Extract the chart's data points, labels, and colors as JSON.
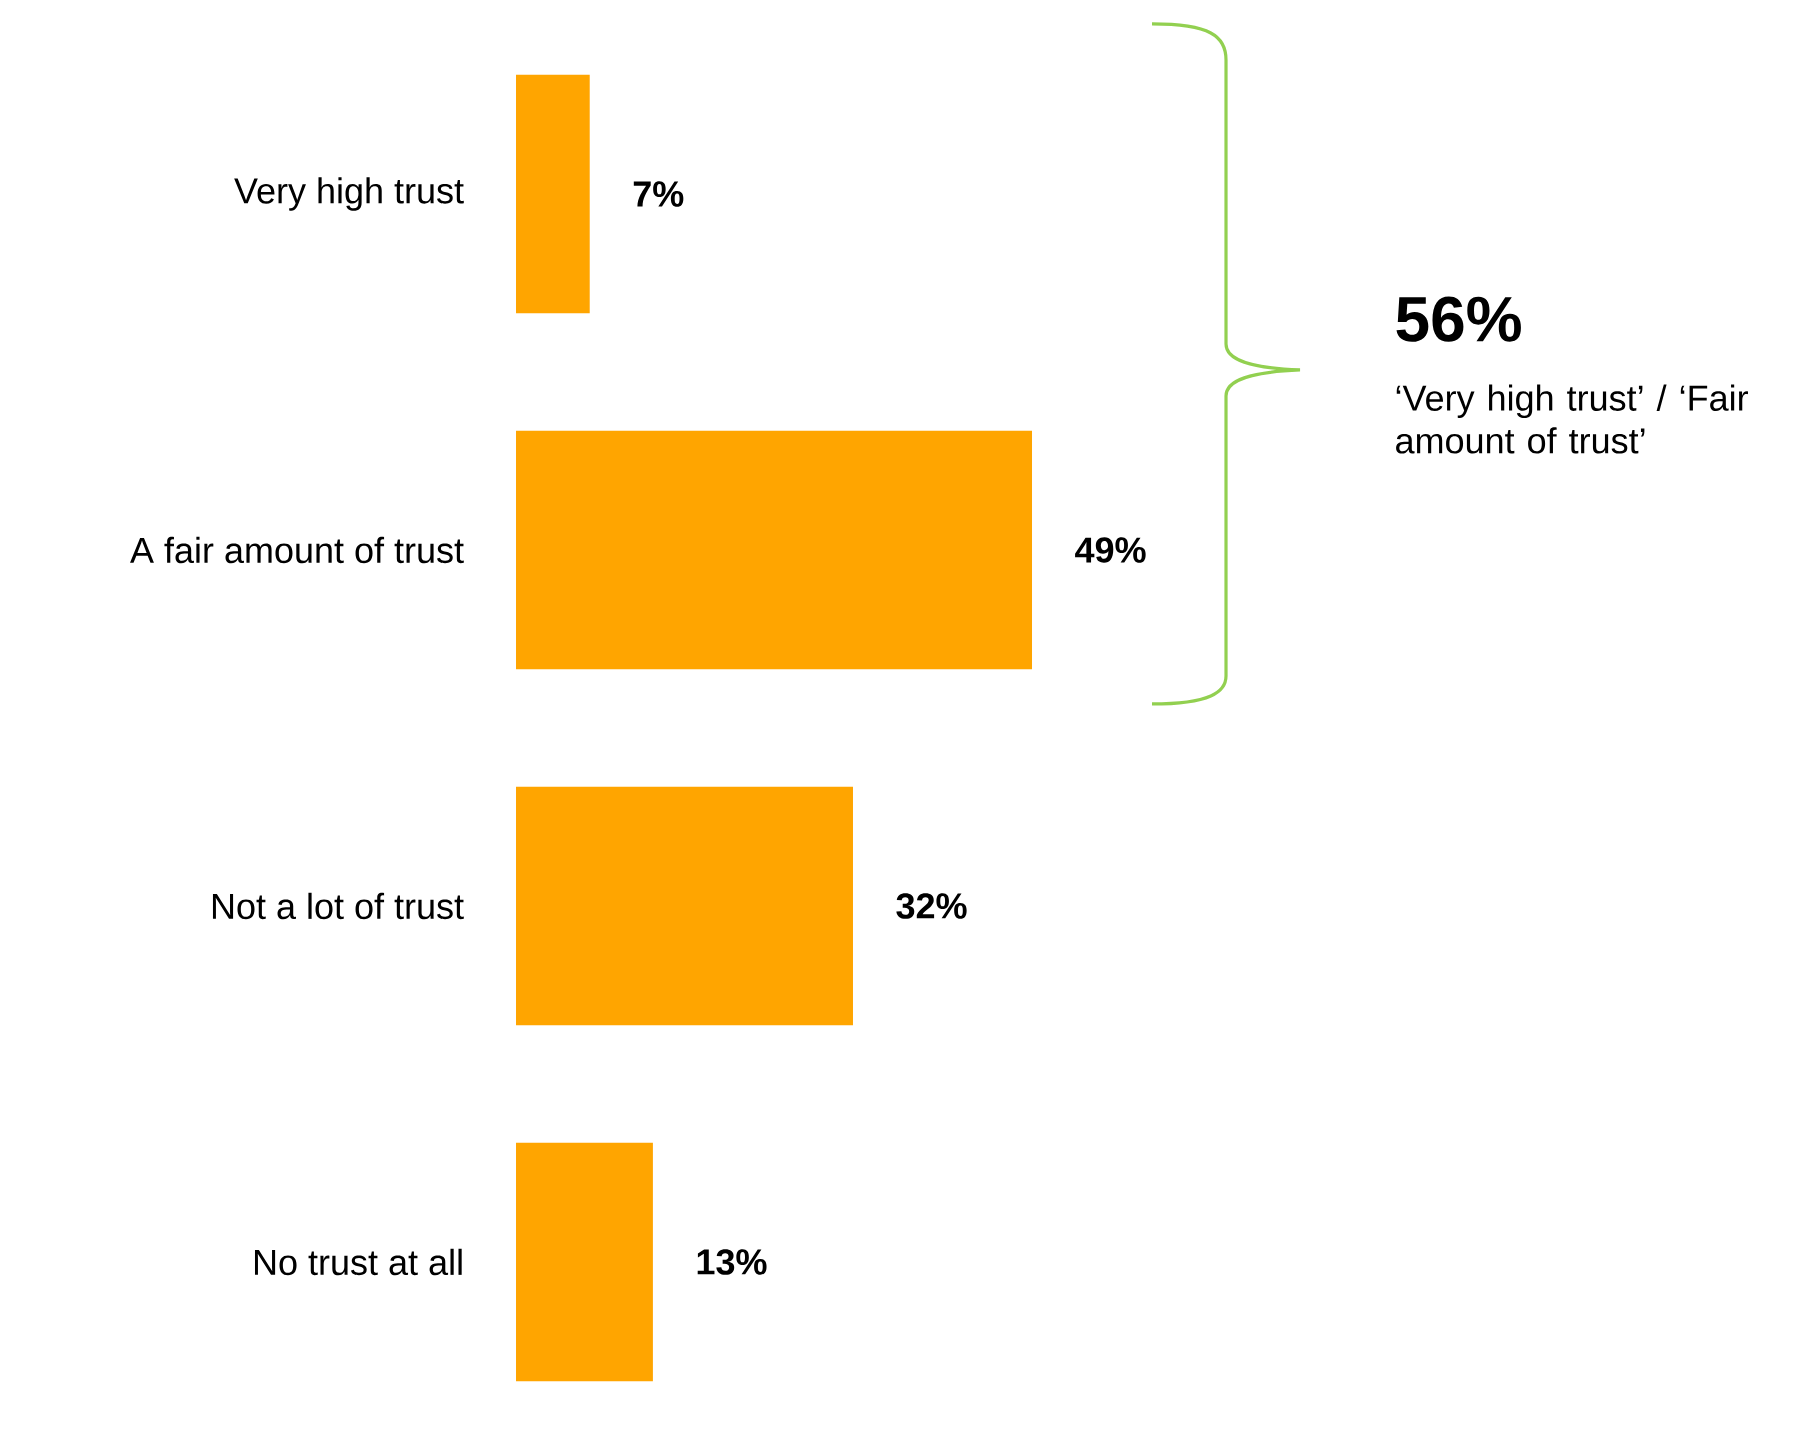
{
  "chart_data": {
    "type": "bar",
    "orientation": "horizontal",
    "categories": [
      "Very high trust",
      "A fair amount of trust",
      "Not a lot of trust",
      "No trust at all"
    ],
    "values": [
      7,
      49,
      32,
      13
    ],
    "value_labels": [
      "7%",
      "49%",
      "32%",
      "13%"
    ],
    "color": "#ffa500",
    "annotations": [
      "56%",
      "‘Very high trust’ / ‘Fair amount of trust’"
    ]
  }
}
